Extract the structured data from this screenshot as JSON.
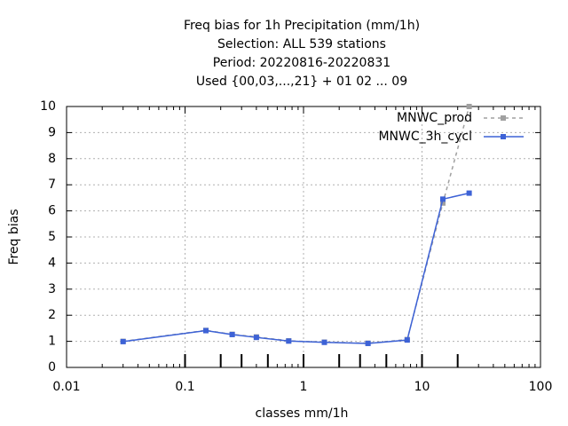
{
  "chart_data": {
    "type": "line",
    "title_lines": [
      "Freq bias  for 1h Precipitation (mm/1h)",
      "Selection: ALL    539 stations",
      "Period: 20220816-20220831",
      "Used {00,03,...,21} + 01 02 ... 09"
    ],
    "xlabel": "classes mm/1h",
    "ylabel": "Freq bias",
    "x_scale": "log",
    "xlim": [
      0.01,
      100
    ],
    "ylim": [
      0,
      10
    ],
    "x_ticks": [
      "0.01",
      "0.1",
      "1",
      "10",
      "100"
    ],
    "y_ticks": [
      "0",
      "1",
      "2",
      "3",
      "4",
      "5",
      "6",
      "7",
      "8",
      "9",
      "10"
    ],
    "grid": true,
    "legend_position": "top-right",
    "class_limits": [
      0.1,
      0.2,
      0.3,
      0.5,
      1,
      2,
      3,
      5,
      10,
      20
    ],
    "series": [
      {
        "name": "MNWC_prod",
        "color": "#a0a0a0",
        "style": "dashed",
        "x": [
          0.03,
          0.15,
          0.25,
          0.4,
          0.75,
          1.5,
          3.5,
          7.5,
          15,
          25
        ],
        "y": [
          1.0,
          1.42,
          1.27,
          1.17,
          1.02,
          0.97,
          0.93,
          1.07,
          6.3,
          10.0
        ]
      },
      {
        "name": "MNWC_3h_cycl",
        "color": "#3d62d6",
        "style": "solid",
        "x": [
          0.03,
          0.15,
          0.25,
          0.4,
          0.75,
          1.5,
          3.5,
          7.5,
          15,
          25
        ],
        "y": [
          0.99,
          1.41,
          1.26,
          1.15,
          1.01,
          0.96,
          0.92,
          1.05,
          6.45,
          6.68
        ]
      }
    ]
  }
}
